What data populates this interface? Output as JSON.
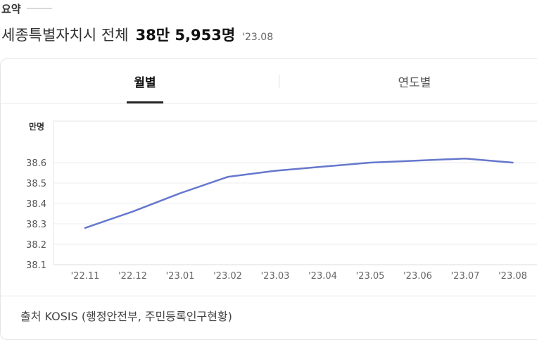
{
  "summary": {
    "label": "요약"
  },
  "headline": {
    "region": "세종특별자치시 전체",
    "total": "38만 5,953명",
    "date": "'23.08"
  },
  "tabs": [
    {
      "label": "월별",
      "selected": true
    },
    {
      "label": "연도별",
      "selected": false
    }
  ],
  "chart_data": {
    "type": "line",
    "unit": "만명",
    "categories": [
      "'22.11",
      "'22.12",
      "'23.01",
      "'23.02",
      "'23.03",
      "'23.04",
      "'23.05",
      "'23.06",
      "'23.07",
      "'23.08"
    ],
    "series": [
      {
        "values": [
          38.28,
          38.36,
          38.45,
          38.53,
          38.56,
          38.58,
          38.6,
          38.61,
          38.62,
          38.6
        ]
      }
    ],
    "yticks": [
      "38.1",
      "38.2",
      "38.3",
      "38.4",
      "38.5",
      "38.6"
    ],
    "ylim": [
      38.1,
      38.6
    ],
    "grid": true,
    "line_color": "#6677cc"
  },
  "source": {
    "text": "출처 KOSIS (행정안전부, 주민등록인구현황)"
  }
}
